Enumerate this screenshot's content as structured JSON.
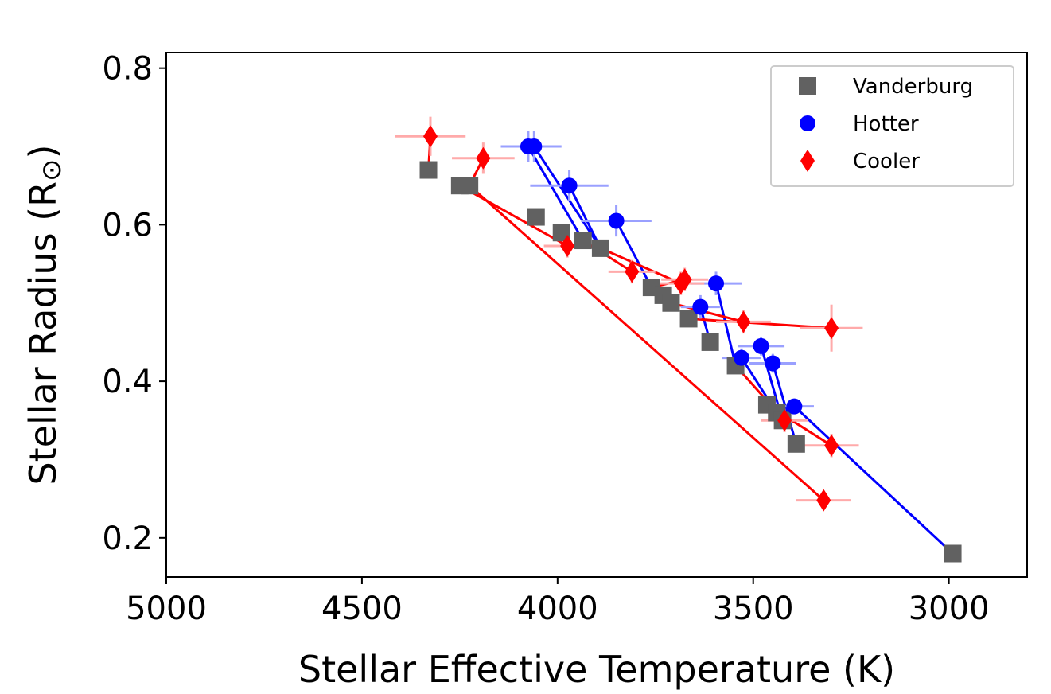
{
  "chart_data": {
    "type": "scatter",
    "xlabel": "Stellar Effective Temperature (K)",
    "ylabel": "Stellar Radius (R",
    "ylabel_symbol": "⊙",
    "ylabel_close": ")",
    "xlim": [
      5000,
      2800
    ],
    "ylim": [
      0.15,
      0.82
    ],
    "x_ticks": [
      5000,
      4500,
      4000,
      3500,
      3000
    ],
    "x_tick_labels": [
      "5000",
      "4500",
      "4000",
      "3500",
      "3000"
    ],
    "y_ticks": [
      0.2,
      0.4,
      0.6,
      0.8
    ],
    "y_tick_labels": [
      "0.2",
      "0.4",
      "0.6",
      "0.8"
    ],
    "legend_position": "top-right",
    "series": [
      {
        "name": "Vanderburg",
        "marker": "square",
        "color": "#616161",
        "points": [
          {
            "x": 4330,
            "y": 0.67
          },
          {
            "x": 4250,
            "y": 0.65
          },
          {
            "x": 4225,
            "y": 0.65
          },
          {
            "x": 4055,
            "y": 0.61
          },
          {
            "x": 3990,
            "y": 0.59
          },
          {
            "x": 3935,
            "y": 0.58
          },
          {
            "x": 3890,
            "y": 0.57
          },
          {
            "x": 3760,
            "y": 0.52
          },
          {
            "x": 3730,
            "y": 0.51
          },
          {
            "x": 3710,
            "y": 0.5
          },
          {
            "x": 3665,
            "y": 0.48
          },
          {
            "x": 3610,
            "y": 0.45
          },
          {
            "x": 3545,
            "y": 0.42
          },
          {
            "x": 3465,
            "y": 0.37
          },
          {
            "x": 3440,
            "y": 0.36
          },
          {
            "x": 3425,
            "y": 0.35
          },
          {
            "x": 3390,
            "y": 0.32
          },
          {
            "x": 2990,
            "y": 0.18
          }
        ]
      },
      {
        "name": "Hotter",
        "marker": "circle",
        "color": "#0000ff",
        "error_color": "#9aa0ff",
        "points": [
          {
            "x": 4075,
            "y": 0.7,
            "xerr": 70,
            "yerr": 0.02
          },
          {
            "x": 4060,
            "y": 0.7,
            "xerr": 70,
            "yerr": 0.02
          },
          {
            "x": 3970,
            "y": 0.65,
            "xerr": 100,
            "yerr": 0.02
          },
          {
            "x": 3850,
            "y": 0.605,
            "xerr": 90,
            "yerr": 0.02
          },
          {
            "x": 3595,
            "y": 0.525,
            "xerr": 65,
            "yerr": 0.015
          },
          {
            "x": 3635,
            "y": 0.495,
            "xerr": 50,
            "yerr": 0.015
          },
          {
            "x": 3530,
            "y": 0.43,
            "xerr": 50,
            "yerr": 0.012
          },
          {
            "x": 3480,
            "y": 0.445,
            "xerr": 60,
            "yerr": 0.012
          },
          {
            "x": 3450,
            "y": 0.423,
            "xerr": 60,
            "yerr": 0.012
          },
          {
            "x": 3395,
            "y": 0.368,
            "xerr": 50,
            "yerr": 0.01
          }
        ]
      },
      {
        "name": "Cooler",
        "marker": "diamond",
        "color": "#ff0000",
        "error_color": "#ffaaaa",
        "points": [
          {
            "x": 4325,
            "y": 0.713,
            "xerr": 90,
            "yerr": 0.025
          },
          {
            "x": 4190,
            "y": 0.685,
            "xerr": 80,
            "yerr": 0.02
          },
          {
            "x": 3975,
            "y": 0.573,
            "xerr": 60,
            "yerr": 0.015
          },
          {
            "x": 3810,
            "y": 0.54,
            "xerr": 60,
            "yerr": 0.015
          },
          {
            "x": 3685,
            "y": 0.525,
            "xerr": 60,
            "yerr": 0.015
          },
          {
            "x": 3675,
            "y": 0.53,
            "xerr": 60,
            "yerr": 0.015
          },
          {
            "x": 3525,
            "y": 0.476,
            "xerr": 70,
            "yerr": 0.015
          },
          {
            "x": 3300,
            "y": 0.468,
            "xerr": 80,
            "yerr": 0.03
          },
          {
            "x": 3420,
            "y": 0.35,
            "xerr": 60,
            "yerr": 0.015
          },
          {
            "x": 3300,
            "y": 0.318,
            "xerr": 70,
            "yerr": 0.015
          },
          {
            "x": 3320,
            "y": 0.248,
            "xerr": 70,
            "yerr": 0.012
          }
        ]
      }
    ],
    "connections": [
      {
        "color": "#0000ff",
        "from": [
          4075,
          0.7
        ],
        "to": [
          3935,
          0.58
        ]
      },
      {
        "color": "#0000ff",
        "from": [
          4060,
          0.7
        ],
        "to": [
          3890,
          0.57
        ]
      },
      {
        "color": "#0000ff",
        "from": [
          3970,
          0.65
        ],
        "to": [
          3890,
          0.57
        ]
      },
      {
        "color": "#0000ff",
        "from": [
          3850,
          0.605
        ],
        "to": [
          3760,
          0.52
        ]
      },
      {
        "color": "#0000ff",
        "from": [
          3595,
          0.525
        ],
        "to": [
          3545,
          0.42
        ]
      },
      {
        "color": "#0000ff",
        "from": [
          3635,
          0.495
        ],
        "to": [
          3610,
          0.45
        ]
      },
      {
        "color": "#0000ff",
        "from": [
          3530,
          0.43
        ],
        "to": [
          3440,
          0.36
        ]
      },
      {
        "color": "#0000ff",
        "from": [
          3480,
          0.445
        ],
        "to": [
          3425,
          0.35
        ]
      },
      {
        "color": "#0000ff",
        "from": [
          3450,
          0.423
        ],
        "to": [
          3390,
          0.32
        ]
      },
      {
        "color": "#0000ff",
        "from": [
          3395,
          0.368
        ],
        "to": [
          2990,
          0.18
        ]
      },
      {
        "color": "#ff0000",
        "from": [
          4325,
          0.713
        ],
        "to": [
          4330,
          0.67
        ]
      },
      {
        "color": "#ff0000",
        "from": [
          4190,
          0.685
        ],
        "to": [
          4225,
          0.65
        ]
      },
      {
        "color": "#ff0000",
        "from": [
          3975,
          0.573
        ],
        "to": [
          4250,
          0.65
        ]
      },
      {
        "color": "#ff0000",
        "from": [
          3810,
          0.54
        ],
        "to": [
          3935,
          0.58
        ]
      },
      {
        "color": "#ff0000",
        "from": [
          3685,
          0.525
        ],
        "to": [
          3890,
          0.57
        ]
      },
      {
        "color": "#ff0000",
        "from": [
          3675,
          0.53
        ],
        "to": [
          3760,
          0.52
        ]
      },
      {
        "color": "#ff0000",
        "from": [
          3525,
          0.476
        ],
        "to": [
          3710,
          0.5
        ]
      },
      {
        "color": "#ff0000",
        "from": [
          3300,
          0.468
        ],
        "to": [
          3665,
          0.48
        ]
      },
      {
        "color": "#ff0000",
        "from": [
          3420,
          0.35
        ],
        "to": [
          3545,
          0.42
        ]
      },
      {
        "color": "#ff0000",
        "from": [
          3300,
          0.318
        ],
        "to": [
          3465,
          0.37
        ]
      },
      {
        "color": "#ff0000",
        "from": [
          3320,
          0.248
        ],
        "to": [
          4225,
          0.65
        ]
      }
    ]
  }
}
